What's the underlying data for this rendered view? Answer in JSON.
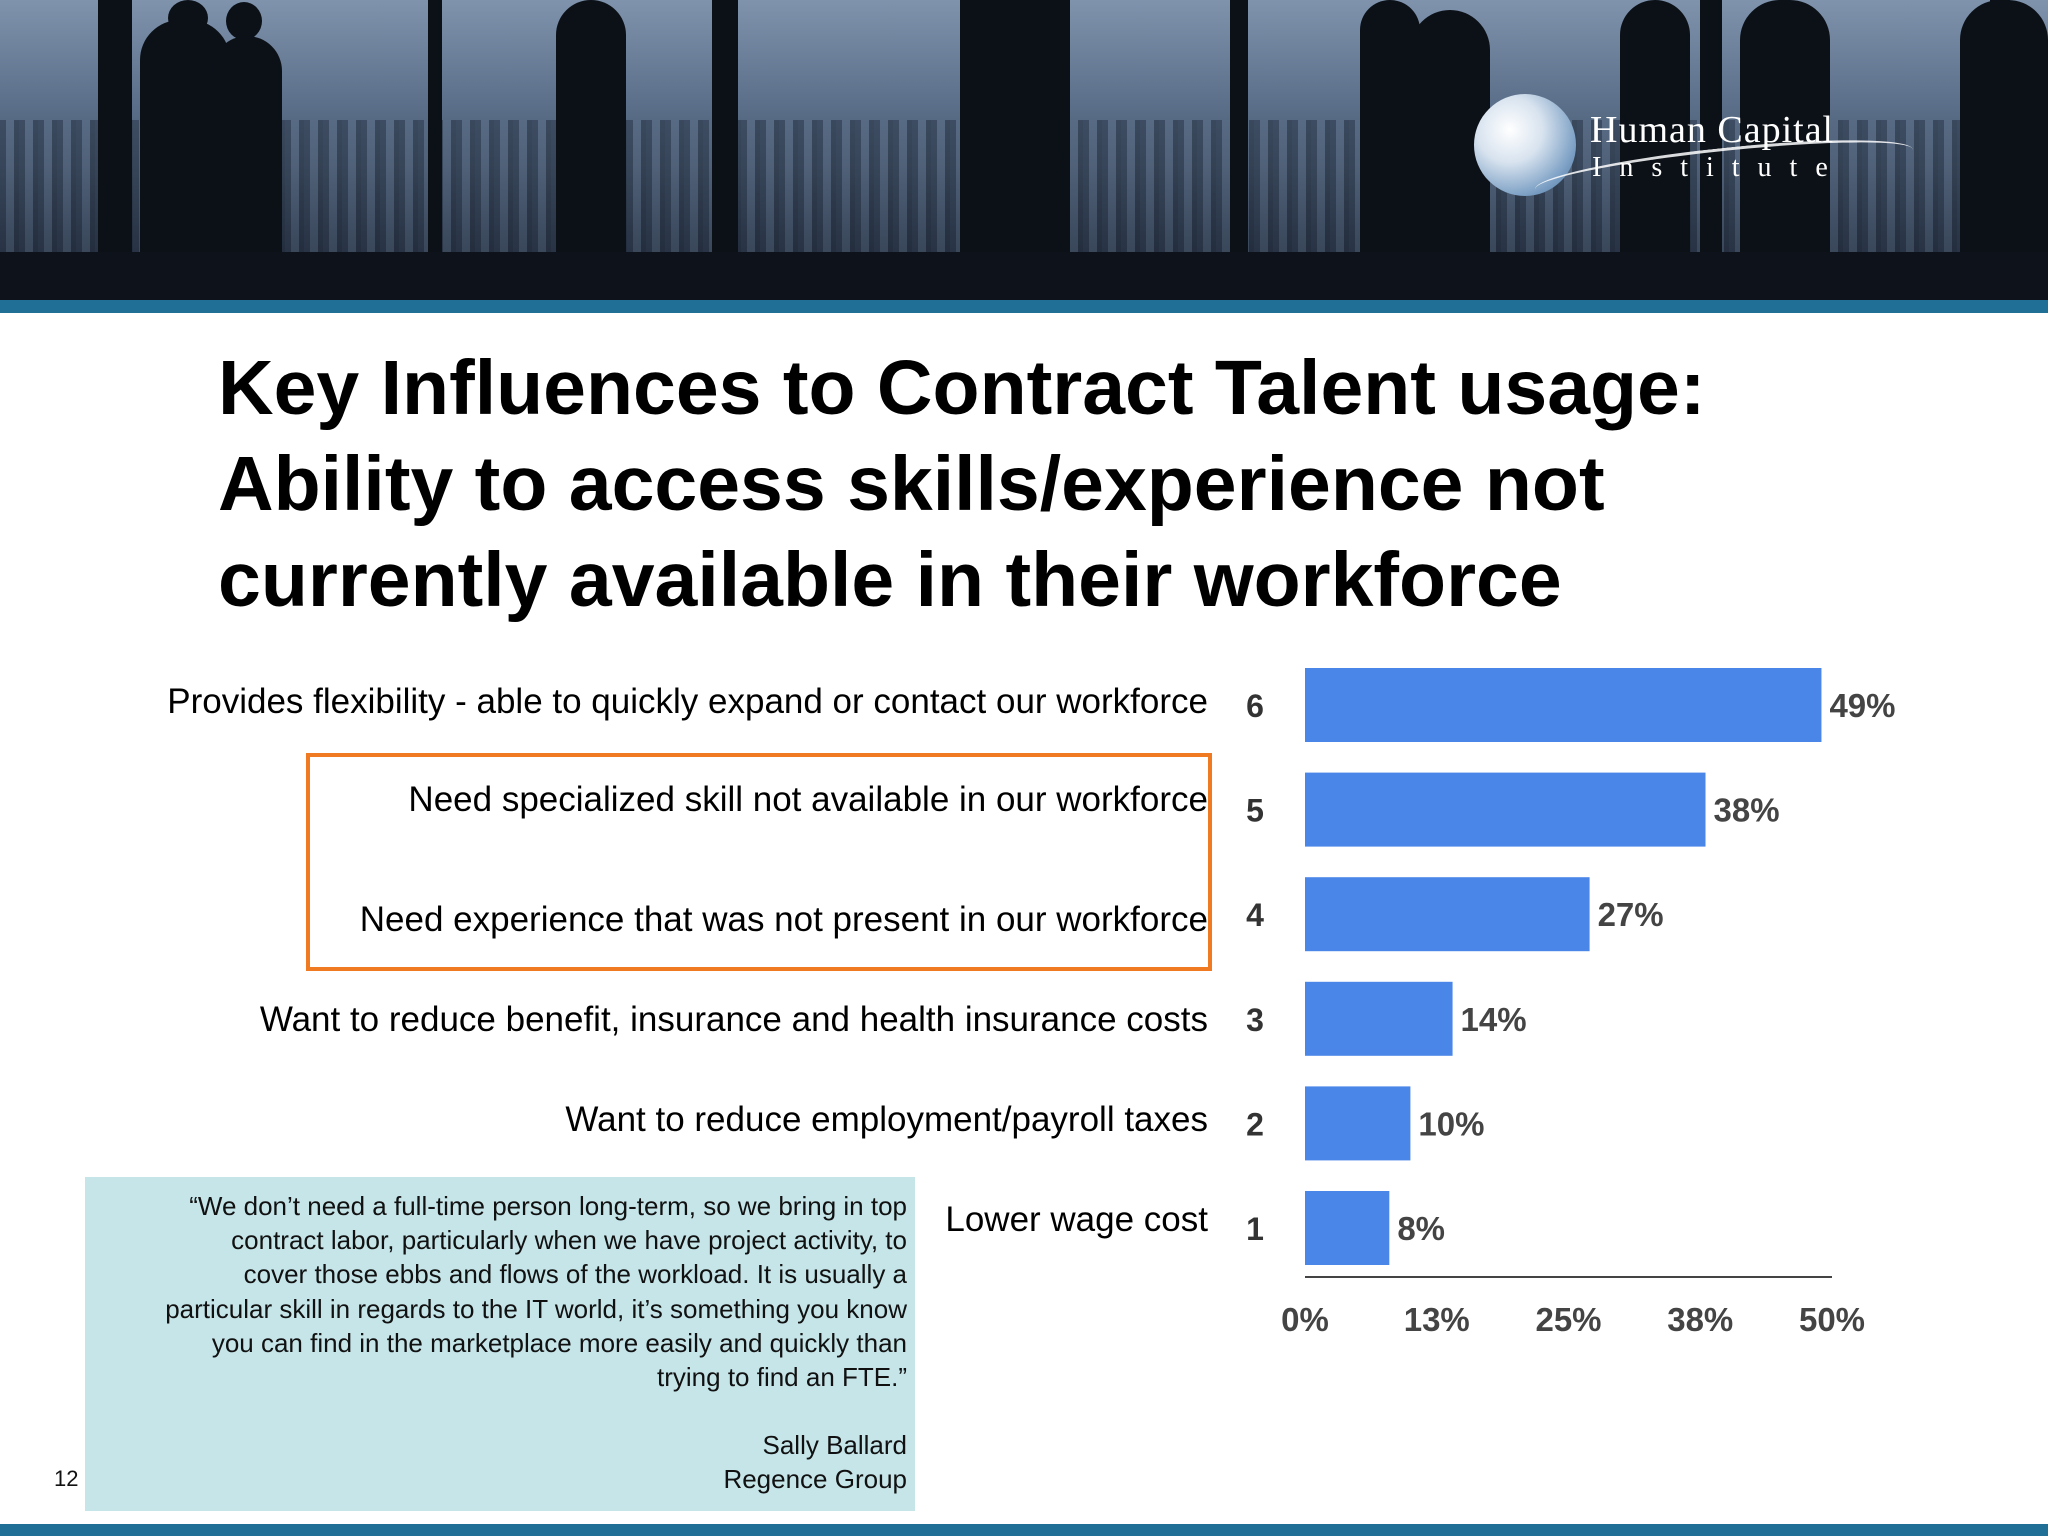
{
  "header": {
    "logo": {
      "line1": "Human Capital",
      "line2": "Institute"
    }
  },
  "title": {
    "lines": [
      "Key Influences to Contract Talent usage:",
      "Ability to access skills/experience not",
      "currently available in their workforce"
    ]
  },
  "quote": {
    "lines": [
      "“We don’t need a full-time person long-term, so we bring in top",
      "contract labor, particularly when we have project activity, to",
      "cover those ebbs and flows of the workload.  It is usually a",
      "particular skill in regards to the IT world, it’s something you know",
      "you can find in the marketplace more easily and quickly than",
      "trying to find an FTE.”"
    ],
    "author": "Sally Ballard",
    "organization": "Regence Group"
  },
  "page_number": "12",
  "colors": {
    "bar": "#4a86e8",
    "highlight_box": "#ef7a22",
    "quote_background": "#c5e5e9",
    "accent_stripe": "#1f6f96"
  },
  "chart_data": {
    "type": "bar",
    "orientation": "horizontal",
    "categories": [
      "Provides flexibility - able to quickly expand or contact our workforce",
      "Need specialized skill not available in our workforce",
      "Need experience that was not present in our workforce",
      "Want to reduce benefit, insurance and health insurance costs",
      "Want to reduce employment/payroll taxes",
      "Lower wage cost"
    ],
    "rank_labels": [
      "6",
      "5",
      "4",
      "3",
      "2",
      "1"
    ],
    "values": [
      49,
      38,
      27,
      14,
      10,
      8
    ],
    "value_labels": [
      "49%",
      "38%",
      "27%",
      "14%",
      "10%",
      "8%"
    ],
    "highlighted_categories": [
      1,
      2
    ],
    "x_ticks": [
      "0%",
      "13%",
      "25%",
      "38%",
      "50%"
    ],
    "xlim": [
      0,
      50
    ],
    "grid": false,
    "legend": "none"
  }
}
